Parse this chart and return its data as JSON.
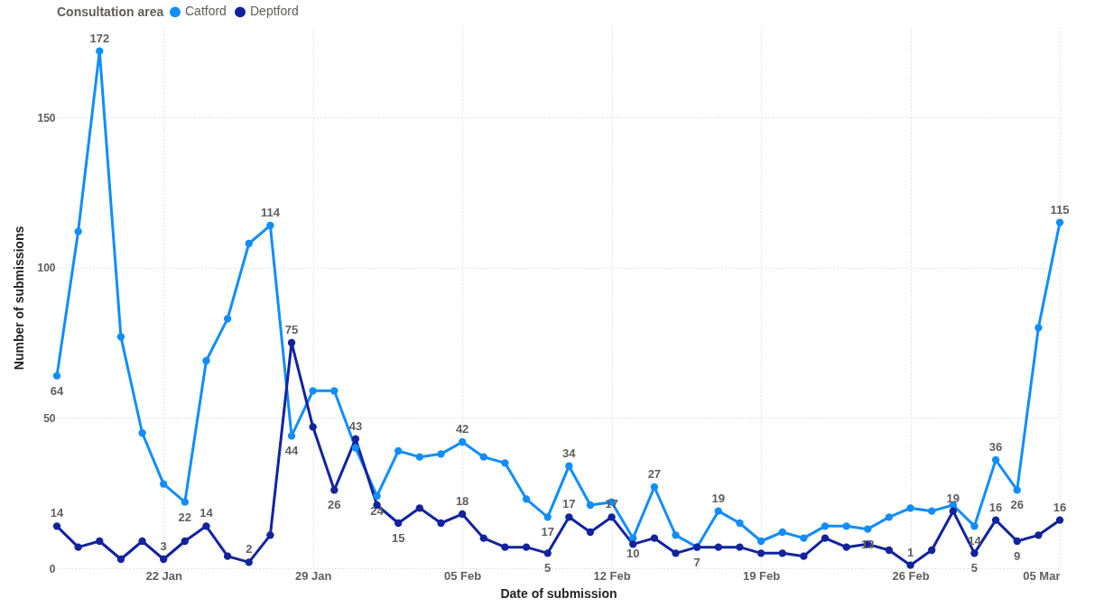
{
  "chart_data": {
    "type": "line",
    "xlabel": "Date of submission",
    "ylabel": "Number of submissions",
    "legend_title": "Consultation area",
    "legend": "top left",
    "grid": true,
    "marker": "circle",
    "line_style": "solid",
    "x": [
      "--01-17",
      "--01-18",
      "--01-19",
      "--01-20",
      "--01-21",
      "--01-22",
      "--01-23",
      "--01-24",
      "--01-25",
      "--01-26",
      "--01-27",
      "--01-28",
      "--01-29",
      "--01-30",
      "--01-31",
      "--02-01",
      "--02-02",
      "--02-03",
      "--02-04",
      "--02-05",
      "--02-06",
      "--02-07",
      "--02-08",
      "--02-09",
      "--02-10",
      "--02-11",
      "--02-12",
      "--02-13",
      "--02-14",
      "--02-15",
      "--02-16",
      "--02-17",
      "--02-18",
      "--02-19",
      "--02-20",
      "--02-21",
      "--02-22",
      "--02-23",
      "--02-24",
      "--02-25",
      "--02-26",
      "--02-27",
      "--02-28",
      "--03-01",
      "--03-02",
      "--03-03",
      "--03-04",
      "--03-05"
    ],
    "xlim": [
      "--01-17",
      "--03-05"
    ],
    "xticks": [
      {
        "value": "--01-22",
        "label": "22 Jan"
      },
      {
        "value": "--01-29",
        "label": "29 Jan"
      },
      {
        "value": "--02-05",
        "label": "05 Feb"
      },
      {
        "value": "--02-12",
        "label": "12 Feb"
      },
      {
        "value": "--02-19",
        "label": "19 Feb"
      },
      {
        "value": "--02-26",
        "label": "26 Feb"
      },
      {
        "value": "--03-05",
        "label": "05 Mar"
      }
    ],
    "ylim": [
      0,
      180
    ],
    "yticks": [
      0,
      50,
      100,
      150
    ],
    "series": [
      {
        "name": "Catford",
        "color": "#118dff",
        "values": [
          64,
          112,
          172,
          77,
          45,
          28,
          22,
          69,
          83,
          108,
          114,
          44,
          59,
          59,
          40,
          24,
          39,
          37,
          38,
          42,
          37,
          35,
          23,
          17,
          34,
          21,
          22,
          10,
          27,
          11,
          7,
          19,
          15,
          9,
          12,
          10,
          14,
          14,
          13,
          17,
          20,
          19,
          21,
          14,
          36,
          26,
          80,
          115
        ],
        "value_labels": [
          "64",
          null,
          "172",
          null,
          null,
          null,
          "22",
          null,
          null,
          null,
          "114",
          "44",
          null,
          null,
          null,
          "24",
          null,
          null,
          null,
          "42",
          null,
          null,
          null,
          "17",
          "34",
          null,
          null,
          "10",
          "27",
          null,
          "7",
          "19",
          null,
          null,
          null,
          null,
          null,
          null,
          "13",
          null,
          null,
          null,
          null,
          "14",
          "36",
          "26",
          null,
          "115"
        ]
      },
      {
        "name": "Deptford",
        "color": "#12239e",
        "values": [
          14,
          7,
          9,
          3,
          9,
          3,
          9,
          14,
          4,
          2,
          11,
          75,
          47,
          26,
          43,
          21,
          15,
          20,
          15,
          18,
          10,
          7,
          7,
          5,
          17,
          12,
          17,
          8,
          10,
          5,
          7,
          7,
          7,
          5,
          5,
          4,
          10,
          7,
          8,
          6,
          1,
          6,
          19,
          5,
          16,
          9,
          11,
          16
        ],
        "value_labels": [
          "14",
          null,
          null,
          null,
          null,
          "3",
          null,
          "14",
          null,
          "2",
          null,
          "75",
          null,
          "26",
          "43",
          null,
          "15",
          null,
          null,
          "18",
          null,
          null,
          null,
          "5",
          "17",
          null,
          "17",
          null,
          null,
          null,
          null,
          null,
          null,
          null,
          null,
          null,
          null,
          null,
          null,
          null,
          "1",
          null,
          "19",
          "5",
          "16",
          "9",
          null,
          "16"
        ]
      }
    ]
  }
}
